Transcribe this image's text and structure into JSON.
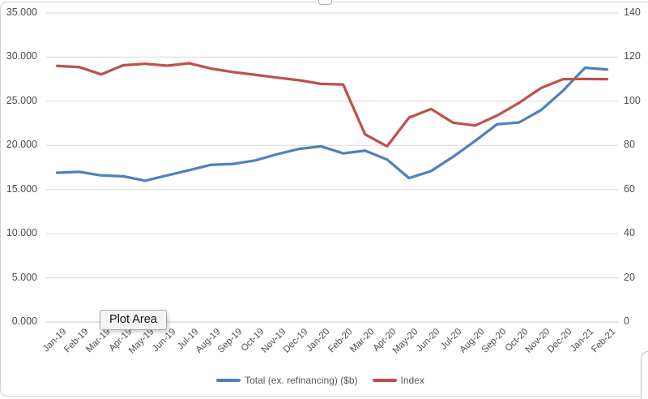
{
  "chart_data": {
    "type": "line",
    "title": "",
    "xlabel": "",
    "ylabel_left": "",
    "ylabel_right": "",
    "grid": true,
    "legend_position": "bottom",
    "categories": [
      "Jan-19",
      "Feb-19",
      "Mar-19",
      "Apr-19",
      "May-19",
      "Jun-19",
      "Jul-19",
      "Aug-19",
      "Sep-19",
      "Oct-19",
      "Nov-19",
      "Dec-19",
      "Jan-20",
      "Feb-20",
      "Mar-20",
      "Apr-20",
      "May-20",
      "Jun-20",
      "Jul-20",
      "Aug-20",
      "Sep-20",
      "Oct-20",
      "Nov-20",
      "Dec-20",
      "Jan-21",
      "Feb-21"
    ],
    "series": [
      {
        "name": "Total (ex. refinancing) ($b)",
        "yaxis": "left",
        "color": "#4F81BD",
        "values": [
          16.9,
          17.0,
          16.6,
          16.5,
          16.0,
          16.6,
          17.2,
          17.8,
          17.9,
          18.3,
          19.0,
          19.6,
          19.9,
          19.1,
          19.4,
          18.4,
          16.3,
          17.1,
          18.7,
          20.5,
          22.4,
          22.6,
          24.0,
          26.2,
          28.8,
          28.6
        ]
      },
      {
        "name": "Index",
        "yaxis": "right",
        "color": "#C0504D",
        "values": [
          116.0,
          115.5,
          112.2,
          116.3,
          117.0,
          116.1,
          117.2,
          114.8,
          113.2,
          112.0,
          110.7,
          109.5,
          107.9,
          107.6,
          85.0,
          79.6,
          92.6,
          96.5,
          90.3,
          89.0,
          93.5,
          99.3,
          106.0,
          110.0,
          110.1,
          110.0
        ]
      }
    ],
    "left_axis": {
      "range": [
        0,
        35
      ],
      "tick_step": 5,
      "tick_labels": [
        "0.000",
        "5.000",
        "10.000",
        "15.000",
        "20.000",
        "25.000",
        "30.000",
        "35.000"
      ]
    },
    "right_axis": {
      "range": [
        0,
        140
      ],
      "tick_step": 20,
      "tick_labels": [
        "0",
        "20",
        "40",
        "60",
        "80",
        "100",
        "120",
        "140"
      ]
    }
  },
  "tooltip": {
    "label": "Plot Area"
  },
  "colors": {
    "gridline": "#D9D9D9",
    "axis_line": "#C6C6C6",
    "axis_text": "#4d4d4d",
    "frame_border": "#d0d0d0"
  }
}
